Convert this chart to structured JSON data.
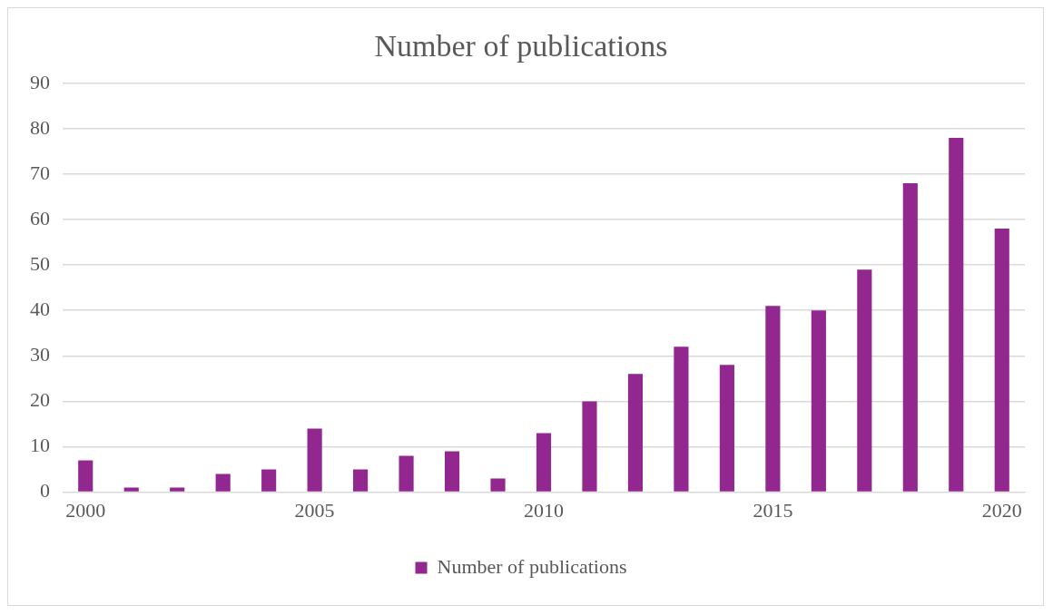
{
  "chart_data": {
    "type": "bar",
    "title": "Number of publications",
    "categories": [
      "2000",
      null,
      null,
      null,
      null,
      "2005",
      null,
      null,
      null,
      null,
      "2010",
      null,
      null,
      null,
      null,
      "2015",
      null,
      null,
      null,
      null,
      "2020"
    ],
    "series": [
      {
        "name": "Number of publications",
        "color": "#92278f",
        "values": [
          7,
          1,
          1,
          4,
          5,
          14,
          5,
          8,
          9,
          3,
          13,
          20,
          26,
          32,
          28,
          41,
          40,
          49,
          68,
          78,
          58
        ]
      }
    ],
    "ylim": [
      0,
      90
    ],
    "yticks": [
      0,
      10,
      20,
      30,
      40,
      50,
      60,
      70,
      80,
      90
    ],
    "grid": "y",
    "legend": "bottom"
  }
}
